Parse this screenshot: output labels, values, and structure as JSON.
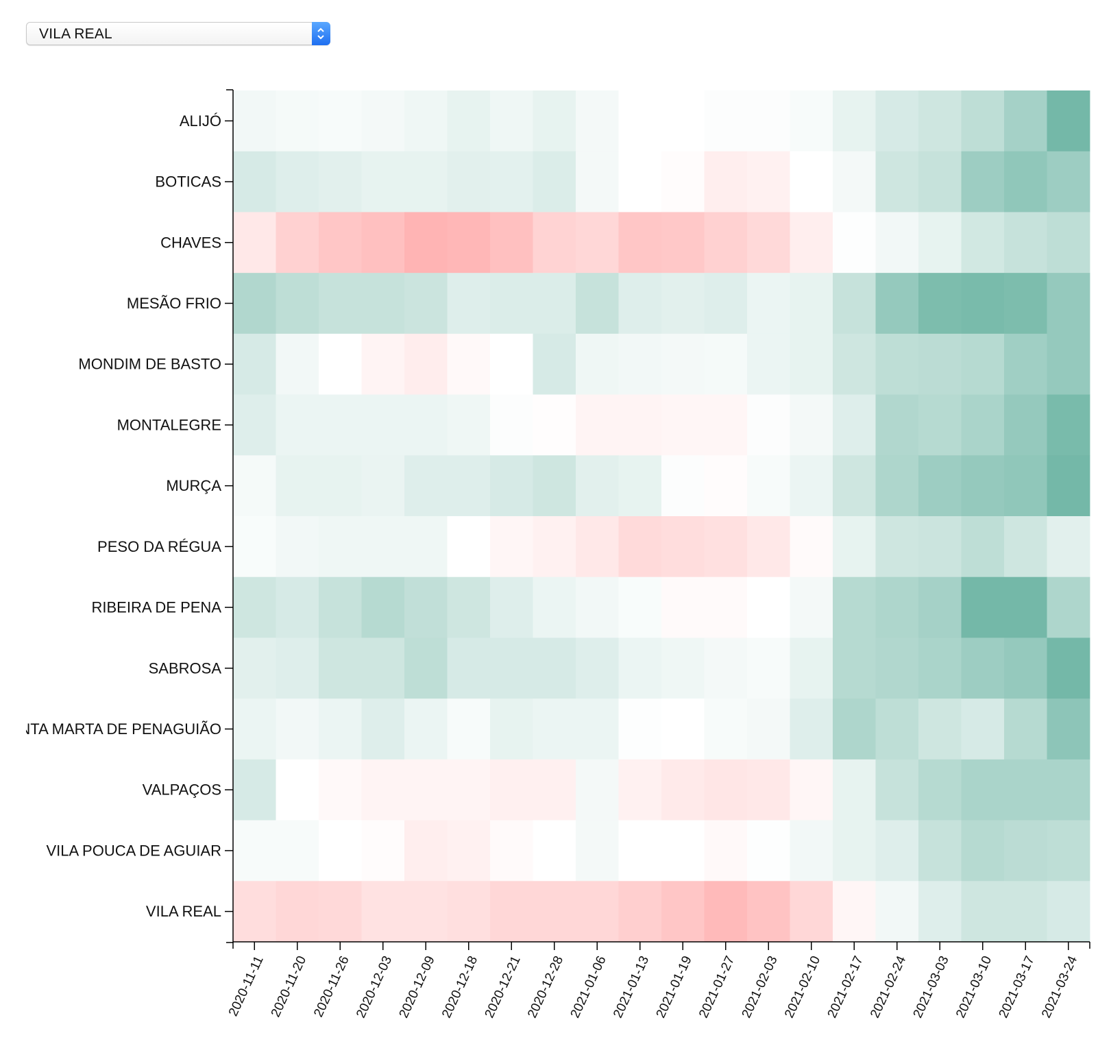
{
  "selector": {
    "selected_value": "VILA REAL"
  },
  "chart_data": {
    "type": "heatmap",
    "title": "",
    "xlabel": "",
    "ylabel": "",
    "x": [
      "2020-11-11",
      "2020-11-20",
      "2020-11-26",
      "2020-12-03",
      "2020-12-09",
      "2020-12-18",
      "2020-12-21",
      "2020-12-28",
      "2021-01-06",
      "2021-01-13",
      "2021-01-19",
      "2021-01-27",
      "2021-02-03",
      "2021-02-10",
      "2021-02-17",
      "2021-02-24",
      "2021-03-03",
      "2021-03-10",
      "2021-03-17",
      "2021-03-24"
    ],
    "y": [
      "ALIJÓ",
      "BOTICAS",
      "CHAVES",
      "MESÃO FRIO",
      "MONDIM DE BASTO",
      "MONTALEGRE",
      "MURÇA",
      "PESO DA RÉGUA",
      "RIBEIRA DE PENA",
      "SABROSA",
      "SANTA MARTA DE PENAGUIÃO",
      "VALPAÇOS",
      "VILA POUCA DE AGUIAR",
      "VILA REAL"
    ],
    "values": [
      [
        0.08,
        0.06,
        0.05,
        0.07,
        0.1,
        0.15,
        0.1,
        0.15,
        0.07,
        0.0,
        0.0,
        0.02,
        0.02,
        0.05,
        0.15,
        0.25,
        0.3,
        0.4,
        0.55,
        0.85
      ],
      [
        0.25,
        0.2,
        0.18,
        0.15,
        0.15,
        0.18,
        0.17,
        0.22,
        0.07,
        0.0,
        -0.03,
        -0.15,
        -0.12,
        0.0,
        0.07,
        0.3,
        0.35,
        0.6,
        0.68,
        0.6
      ],
      [
        -0.2,
        -0.4,
        -0.5,
        -0.55,
        -0.65,
        -0.63,
        -0.55,
        -0.38,
        -0.35,
        -0.5,
        -0.48,
        -0.4,
        -0.33,
        -0.15,
        0.01,
        0.08,
        0.15,
        0.28,
        0.35,
        0.4
      ],
      [
        0.48,
        0.4,
        0.35,
        0.35,
        0.32,
        0.2,
        0.22,
        0.22,
        0.35,
        0.2,
        0.18,
        0.2,
        0.12,
        0.15,
        0.35,
        0.65,
        0.8,
        0.82,
        0.8,
        0.65
      ],
      [
        0.25,
        0.08,
        0.0,
        -0.1,
        -0.16,
        -0.05,
        0.0,
        0.25,
        0.1,
        0.08,
        0.07,
        0.06,
        0.12,
        0.15,
        0.3,
        0.4,
        0.42,
        0.45,
        0.58,
        0.65
      ],
      [
        0.2,
        0.12,
        0.12,
        0.12,
        0.12,
        0.1,
        0.02,
        -0.02,
        -0.1,
        -0.1,
        -0.08,
        -0.08,
        0.02,
        0.07,
        0.2,
        0.48,
        0.45,
        0.52,
        0.65,
        0.82
      ],
      [
        0.06,
        0.15,
        0.15,
        0.13,
        0.2,
        0.2,
        0.25,
        0.3,
        0.18,
        0.15,
        0.02,
        -0.03,
        0.05,
        0.12,
        0.3,
        0.5,
        0.6,
        0.65,
        0.68,
        0.85
      ],
      [
        0.04,
        0.08,
        0.1,
        0.1,
        0.1,
        0.0,
        -0.08,
        -0.12,
        -0.2,
        -0.32,
        -0.3,
        -0.27,
        -0.2,
        -0.04,
        0.15,
        0.3,
        0.32,
        0.4,
        0.3,
        0.18
      ],
      [
        0.3,
        0.25,
        0.35,
        0.45,
        0.38,
        0.3,
        0.2,
        0.12,
        0.08,
        0.04,
        -0.04,
        -0.04,
        0.0,
        0.07,
        0.45,
        0.5,
        0.55,
        0.85,
        0.85,
        0.5
      ],
      [
        0.18,
        0.2,
        0.3,
        0.3,
        0.4,
        0.25,
        0.25,
        0.25,
        0.2,
        0.12,
        0.1,
        0.07,
        0.05,
        0.15,
        0.45,
        0.48,
        0.52,
        0.6,
        0.65,
        0.85
      ],
      [
        0.12,
        0.08,
        0.12,
        0.2,
        0.12,
        0.05,
        0.15,
        0.12,
        0.12,
        0.01,
        0.0,
        0.05,
        0.07,
        0.2,
        0.5,
        0.4,
        0.3,
        0.25,
        0.45,
        0.7
      ],
      [
        0.25,
        0.0,
        -0.05,
        -0.1,
        -0.1,
        -0.1,
        -0.13,
        -0.13,
        0.07,
        -0.12,
        -0.18,
        -0.22,
        -0.2,
        -0.08,
        0.15,
        0.35,
        0.45,
        0.52,
        0.52,
        0.52
      ],
      [
        0.05,
        0.05,
        0.0,
        -0.03,
        -0.15,
        -0.12,
        -0.04,
        0.0,
        0.07,
        0.0,
        0.0,
        -0.05,
        0.01,
        0.08,
        0.15,
        0.2,
        0.35,
        0.45,
        0.42,
        0.4
      ],
      [
        -0.3,
        -0.35,
        -0.33,
        -0.25,
        -0.25,
        -0.28,
        -0.35,
        -0.35,
        -0.35,
        -0.42,
        -0.5,
        -0.6,
        -0.52,
        -0.35,
        -0.08,
        0.08,
        0.2,
        0.3,
        0.3,
        0.25
      ]
    ],
    "color_scale": {
      "negative": "#ff8c8c",
      "zero": "#ffffff",
      "positive": "#5cac99"
    },
    "grid": false,
    "legend": "none"
  }
}
